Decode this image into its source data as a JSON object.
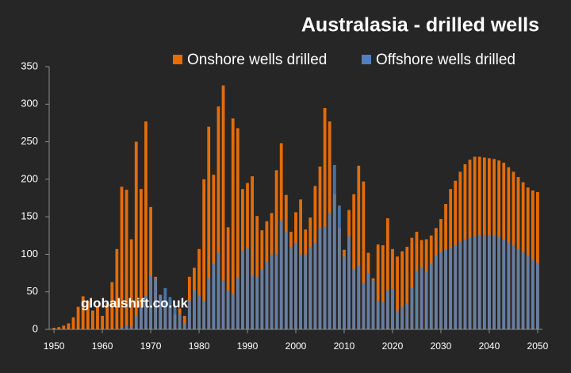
{
  "chart_data": {
    "type": "bar",
    "title": "Australasia - drilled wells",
    "annotation": "globalshift.co.uk",
    "x": [
      1950,
      1951,
      1952,
      1953,
      1954,
      1955,
      1956,
      1957,
      1958,
      1959,
      1960,
      1961,
      1962,
      1963,
      1964,
      1965,
      1966,
      1967,
      1968,
      1969,
      1970,
      1971,
      1972,
      1973,
      1974,
      1975,
      1976,
      1977,
      1978,
      1979,
      1980,
      1981,
      1982,
      1983,
      1984,
      1985,
      1986,
      1987,
      1988,
      1989,
      1990,
      1991,
      1992,
      1993,
      1994,
      1995,
      1996,
      1997,
      1998,
      1999,
      2000,
      2001,
      2002,
      2003,
      2004,
      2005,
      2006,
      2007,
      2008,
      2009,
      2010,
      2011,
      2012,
      2013,
      2014,
      2015,
      2016,
      2017,
      2018,
      2019,
      2020,
      2021,
      2022,
      2023,
      2024,
      2025,
      2026,
      2027,
      2028,
      2029,
      2030,
      2031,
      2032,
      2033,
      2034,
      2035,
      2036,
      2037,
      2038,
      2039,
      2040,
      2041,
      2042,
      2043,
      2044,
      2045,
      2046,
      2047,
      2048,
      2049,
      2050
    ],
    "series": [
      {
        "name": "Onshore wells drilled",
        "color": "#e46c0a",
        "values": [
          2,
          3,
          5,
          8,
          16,
          30,
          44,
          38,
          25,
          30,
          18,
          35,
          63,
          107,
          190,
          186,
          120,
          250,
          187,
          277,
          163,
          70,
          46,
          30,
          30,
          20,
          28,
          18,
          70,
          82,
          107,
          200,
          270,
          206,
          297,
          325,
          136,
          281,
          268,
          187,
          195,
          204,
          151,
          132,
          144,
          155,
          212,
          248,
          179,
          130,
          156,
          173,
          133,
          149,
          191,
          217,
          295,
          277,
          180,
          135,
          106,
          159,
          180,
          218,
          197,
          102,
          68,
          113,
          112,
          148,
          107,
          97,
          104,
          110,
          122,
          130,
          119,
          120,
          125,
          135,
          147,
          167,
          187,
          198,
          210,
          220,
          226,
          230,
          230,
          229,
          228,
          227,
          225,
          222,
          216,
          210,
          203,
          196,
          189,
          185,
          183
        ]
      },
      {
        "name": "Offshore wells drilled",
        "color": "#4f81bd",
        "values": [
          0,
          0,
          0,
          0,
          0,
          0,
          0,
          0,
          0,
          0,
          0,
          0,
          0,
          0,
          2,
          5,
          4,
          18,
          30,
          45,
          71,
          68,
          45,
          55,
          43,
          30,
          20,
          8,
          38,
          52,
          45,
          38,
          68,
          88,
          102,
          65,
          52,
          47,
          69,
          105,
          108,
          72,
          70,
          80,
          90,
          100,
          100,
          145,
          130,
          110,
          115,
          100,
          100,
          110,
          115,
          135,
          137,
          155,
          219,
          165,
          97,
          124,
          80,
          85,
          62,
          75,
          65,
          38,
          36,
          52,
          54,
          25,
          30,
          35,
          55,
          78,
          83,
          77,
          88,
          98,
          103,
          106,
          108,
          112,
          117,
          120,
          122,
          124,
          126,
          126,
          126,
          125,
          123,
          120,
          116,
          112,
          107,
          103,
          98,
          93,
          89
        ]
      }
    ],
    "xlim": [
      1949,
      2051
    ],
    "xticks": [
      1950,
      1960,
      1970,
      1980,
      1990,
      2000,
      2010,
      2020,
      2030,
      2040,
      2050
    ],
    "ylim": [
      0,
      350
    ],
    "yticks": [
      0,
      50,
      100,
      150,
      200,
      250,
      300,
      350
    ]
  }
}
